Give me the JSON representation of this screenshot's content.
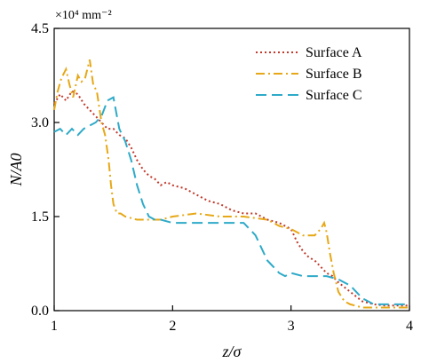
{
  "chart_data": {
    "type": "line",
    "xlabel": "z/σ",
    "ylabel": "N/A0",
    "unit_text": "×10⁴ mm⁻²",
    "xlim": [
      1,
      4
    ],
    "ylim": [
      0,
      4.5
    ],
    "xticks": [
      "1",
      "2",
      "3",
      "4"
    ],
    "yticks": [
      "0.0",
      "1.5",
      "3.0",
      "4.5"
    ],
    "legend_position": "top-right",
    "grid": false,
    "series": [
      {
        "name": "Surface A",
        "color": "#c0392b",
        "dash": "dotted",
        "x": [
          1.0,
          1.05,
          1.1,
          1.15,
          1.2,
          1.25,
          1.3,
          1.35,
          1.4,
          1.45,
          1.5,
          1.55,
          1.6,
          1.65,
          1.7,
          1.75,
          1.8,
          1.85,
          1.9,
          1.95,
          2.0,
          2.1,
          2.2,
          2.3,
          2.4,
          2.5,
          2.6,
          2.7,
          2.8,
          2.9,
          3.0,
          3.05,
          3.1,
          3.15,
          3.2,
          3.25,
          3.3,
          3.35,
          3.4,
          3.5,
          3.6,
          3.7,
          3.8,
          3.9,
          4.0
        ],
        "y": [
          3.3,
          3.45,
          3.35,
          3.5,
          3.45,
          3.3,
          3.2,
          3.1,
          3.0,
          2.9,
          2.9,
          2.8,
          2.75,
          2.6,
          2.4,
          2.25,
          2.15,
          2.1,
          2.0,
          2.05,
          2.0,
          1.95,
          1.85,
          1.75,
          1.7,
          1.6,
          1.55,
          1.55,
          1.45,
          1.4,
          1.3,
          1.1,
          0.95,
          0.85,
          0.8,
          0.7,
          0.6,
          0.55,
          0.45,
          0.3,
          0.15,
          0.1,
          0.08,
          0.08,
          0.08
        ]
      },
      {
        "name": "Surface B",
        "color": "#e6a817",
        "dash": "dash-dot",
        "x": [
          1.0,
          1.03,
          1.06,
          1.1,
          1.13,
          1.16,
          1.2,
          1.23,
          1.26,
          1.3,
          1.33,
          1.36,
          1.4,
          1.43,
          1.46,
          1.48,
          1.5,
          1.53,
          1.56,
          1.6,
          1.7,
          1.8,
          1.9,
          2.0,
          2.2,
          2.4,
          2.6,
          2.8,
          2.9,
          3.0,
          3.1,
          3.2,
          3.25,
          3.28,
          3.3,
          3.33,
          3.36,
          3.4,
          3.45,
          3.5,
          3.6,
          3.7,
          3.8,
          3.9,
          4.0
        ],
        "y": [
          3.2,
          3.5,
          3.7,
          3.85,
          3.6,
          3.4,
          3.75,
          3.65,
          3.7,
          4.0,
          3.6,
          3.5,
          3.0,
          2.8,
          2.4,
          2.0,
          1.7,
          1.55,
          1.55,
          1.5,
          1.45,
          1.45,
          1.45,
          1.5,
          1.55,
          1.5,
          1.5,
          1.45,
          1.35,
          1.3,
          1.2,
          1.2,
          1.3,
          1.4,
          1.25,
          0.9,
          0.6,
          0.3,
          0.15,
          0.1,
          0.05,
          0.05,
          0.05,
          0.05,
          0.05
        ]
      },
      {
        "name": "Surface C",
        "color": "#2eaac8",
        "dash": "dashed",
        "x": [
          1.0,
          1.05,
          1.1,
          1.15,
          1.2,
          1.25,
          1.3,
          1.35,
          1.4,
          1.45,
          1.5,
          1.55,
          1.6,
          1.65,
          1.7,
          1.75,
          1.8,
          1.85,
          1.9,
          2.0,
          2.1,
          2.2,
          2.3,
          2.4,
          2.5,
          2.6,
          2.65,
          2.7,
          2.75,
          2.8,
          2.85,
          2.9,
          2.95,
          3.0,
          3.1,
          3.2,
          3.3,
          3.4,
          3.5,
          3.6,
          3.7,
          3.8,
          3.9,
          4.0
        ],
        "y": [
          2.85,
          2.9,
          2.8,
          2.9,
          2.8,
          2.9,
          2.95,
          3.0,
          3.1,
          3.35,
          3.4,
          2.9,
          2.7,
          2.4,
          2.0,
          1.7,
          1.5,
          1.45,
          1.45,
          1.4,
          1.4,
          1.4,
          1.4,
          1.4,
          1.4,
          1.4,
          1.3,
          1.2,
          1.0,
          0.8,
          0.7,
          0.6,
          0.55,
          0.6,
          0.55,
          0.55,
          0.55,
          0.5,
          0.4,
          0.2,
          0.1,
          0.1,
          0.1,
          0.1
        ]
      }
    ]
  }
}
